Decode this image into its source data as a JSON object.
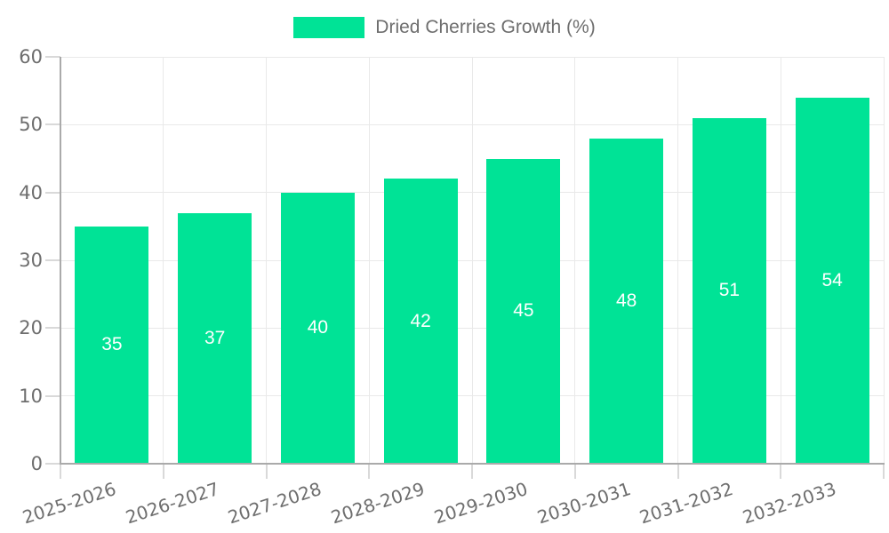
{
  "chart_data": {
    "type": "bar",
    "title": "",
    "categories": [
      "2025-2026",
      "2026-2027",
      "2027-2028",
      "2028-2029",
      "2029-2030",
      "2030-2031",
      "2031-2032",
      "2032-2033"
    ],
    "series": [
      {
        "name": "Dried Cherries Growth (%)",
        "values": [
          35,
          37,
          40,
          42,
          45,
          48,
          51,
          54
        ],
        "color": "#00E396"
      }
    ],
    "xlabel": "",
    "ylabel": "",
    "ylim": [
      0,
      60
    ],
    "yticks": [
      0,
      10,
      20,
      30,
      40,
      50,
      60
    ],
    "grid": "both",
    "legend_position": "top-center",
    "data_labels_visible": true,
    "x_tick_rotation_deg": -18,
    "style": {
      "background": "#ffffff",
      "data_label_color": "#ffffff",
      "tick_text_color": "#6e6e6e",
      "legend_text_color": "#6e6e6e",
      "gridline_color": "#e9e9e9",
      "tick_mark_color": "#d9d9d9",
      "axis_line_color": "#aaaaaa"
    }
  }
}
